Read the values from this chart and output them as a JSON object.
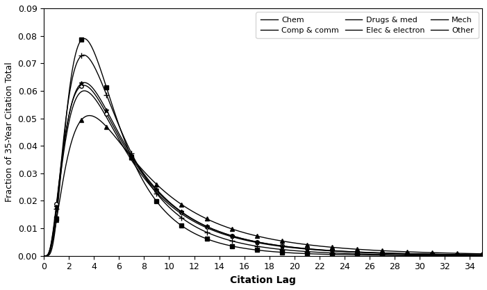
{
  "title": "",
  "xlabel": "Citation Lag",
  "ylabel": "Fraction of 35-Year Citation Total",
  "xlim": [
    0,
    35
  ],
  "ylim": [
    0,
    0.09
  ],
  "xticks": [
    0,
    2,
    4,
    6,
    8,
    10,
    12,
    14,
    16,
    18,
    20,
    22,
    24,
    26,
    28,
    30,
    32,
    34
  ],
  "yticks": [
    0.0,
    0.01,
    0.02,
    0.03,
    0.04,
    0.05,
    0.06,
    0.07,
    0.08,
    0.09
  ],
  "series": [
    {
      "label": "Chem",
      "color": "#000000",
      "marker": "o",
      "markersize": 4,
      "markerfacecolor": "white",
      "markeredgecolor": "#000000",
      "linewidth": 1.0,
      "mu": 1.72,
      "sigma": 0.75,
      "peak": 0.062
    },
    {
      "label": "Comp & comm",
      "color": "#000000",
      "marker": "s",
      "markersize": 5,
      "markerfacecolor": "#000000",
      "markeredgecolor": "#000000",
      "linewidth": 1.0,
      "mu": 1.55,
      "sigma": 0.62,
      "peak": 0.079
    },
    {
      "label": "Drugs & med",
      "color": "#000000",
      "marker": "^",
      "markersize": 5,
      "markerfacecolor": "#000000",
      "markeredgecolor": "#000000",
      "linewidth": 1.0,
      "mu": 1.9,
      "sigma": 0.78,
      "peak": 0.051
    },
    {
      "label": "Elec & electron",
      "color": "#000000",
      "marker": "+",
      "markersize": 6,
      "markerfacecolor": "#000000",
      "markeredgecolor": "#000000",
      "linewidth": 1.0,
      "mu": 1.62,
      "sigma": 0.68,
      "peak": 0.073
    },
    {
      "label": "Mech",
      "color": "#000000",
      "marker": "*",
      "markersize": 5,
      "markerfacecolor": "#000000",
      "markeredgecolor": "#000000",
      "linewidth": 1.0,
      "mu": 1.72,
      "sigma": 0.74,
      "peak": 0.063
    },
    {
      "label": "Other",
      "color": "#000000",
      "marker": "None",
      "markersize": 0,
      "markerfacecolor": "#000000",
      "markeredgecolor": "#000000",
      "linewidth": 1.0,
      "mu": 1.72,
      "sigma": 0.74,
      "peak": 0.06
    }
  ],
  "legend_loc": "upper right",
  "legend_ncol": 3,
  "background_color": "#ffffff",
  "marker_every": 2
}
